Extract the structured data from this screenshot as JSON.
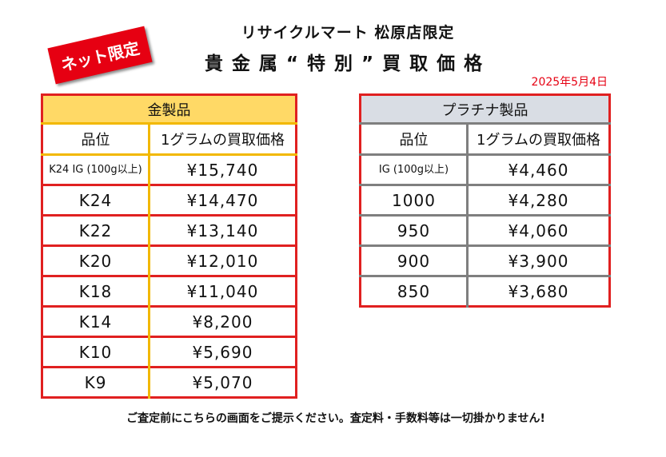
{
  "header": {
    "store_name": "リサイクルマート 松原店限定",
    "title": "貴金属“特別”買取価格",
    "badge": "ネット限定",
    "date": "2025年5月4日"
  },
  "gold": {
    "heading": "金製品",
    "col_grade": "品位",
    "col_price": "1グラムの買取価格",
    "rows": [
      {
        "grade": "K24 IG (100g以上)",
        "price": "¥15,740"
      },
      {
        "grade": "K24",
        "price": "¥14,470"
      },
      {
        "grade": "K22",
        "price": "¥13,140"
      },
      {
        "grade": "K20",
        "price": "¥12,010"
      },
      {
        "grade": "K18",
        "price": "¥11,040"
      },
      {
        "grade": "K14",
        "price": "¥8,200"
      },
      {
        "grade": "K10",
        "price": "¥5,690"
      },
      {
        "grade": "K9",
        "price": "¥5,070"
      }
    ]
  },
  "platinum": {
    "heading": "プラチナ製品",
    "col_grade": "品位",
    "col_price": "1グラムの買取価格",
    "rows": [
      {
        "grade": "IG (100g以上)",
        "price": "¥4,460"
      },
      {
        "grade": "1000",
        "price": "¥4,280"
      },
      {
        "grade": "950",
        "price": "¥4,060"
      },
      {
        "grade": "900",
        "price": "¥3,900"
      },
      {
        "grade": "850",
        "price": "¥3,680"
      }
    ]
  },
  "footer": {
    "notice": "ご査定前にこちらの画面をご提示ください。査定料・手数料等は一切掛かりません!"
  }
}
